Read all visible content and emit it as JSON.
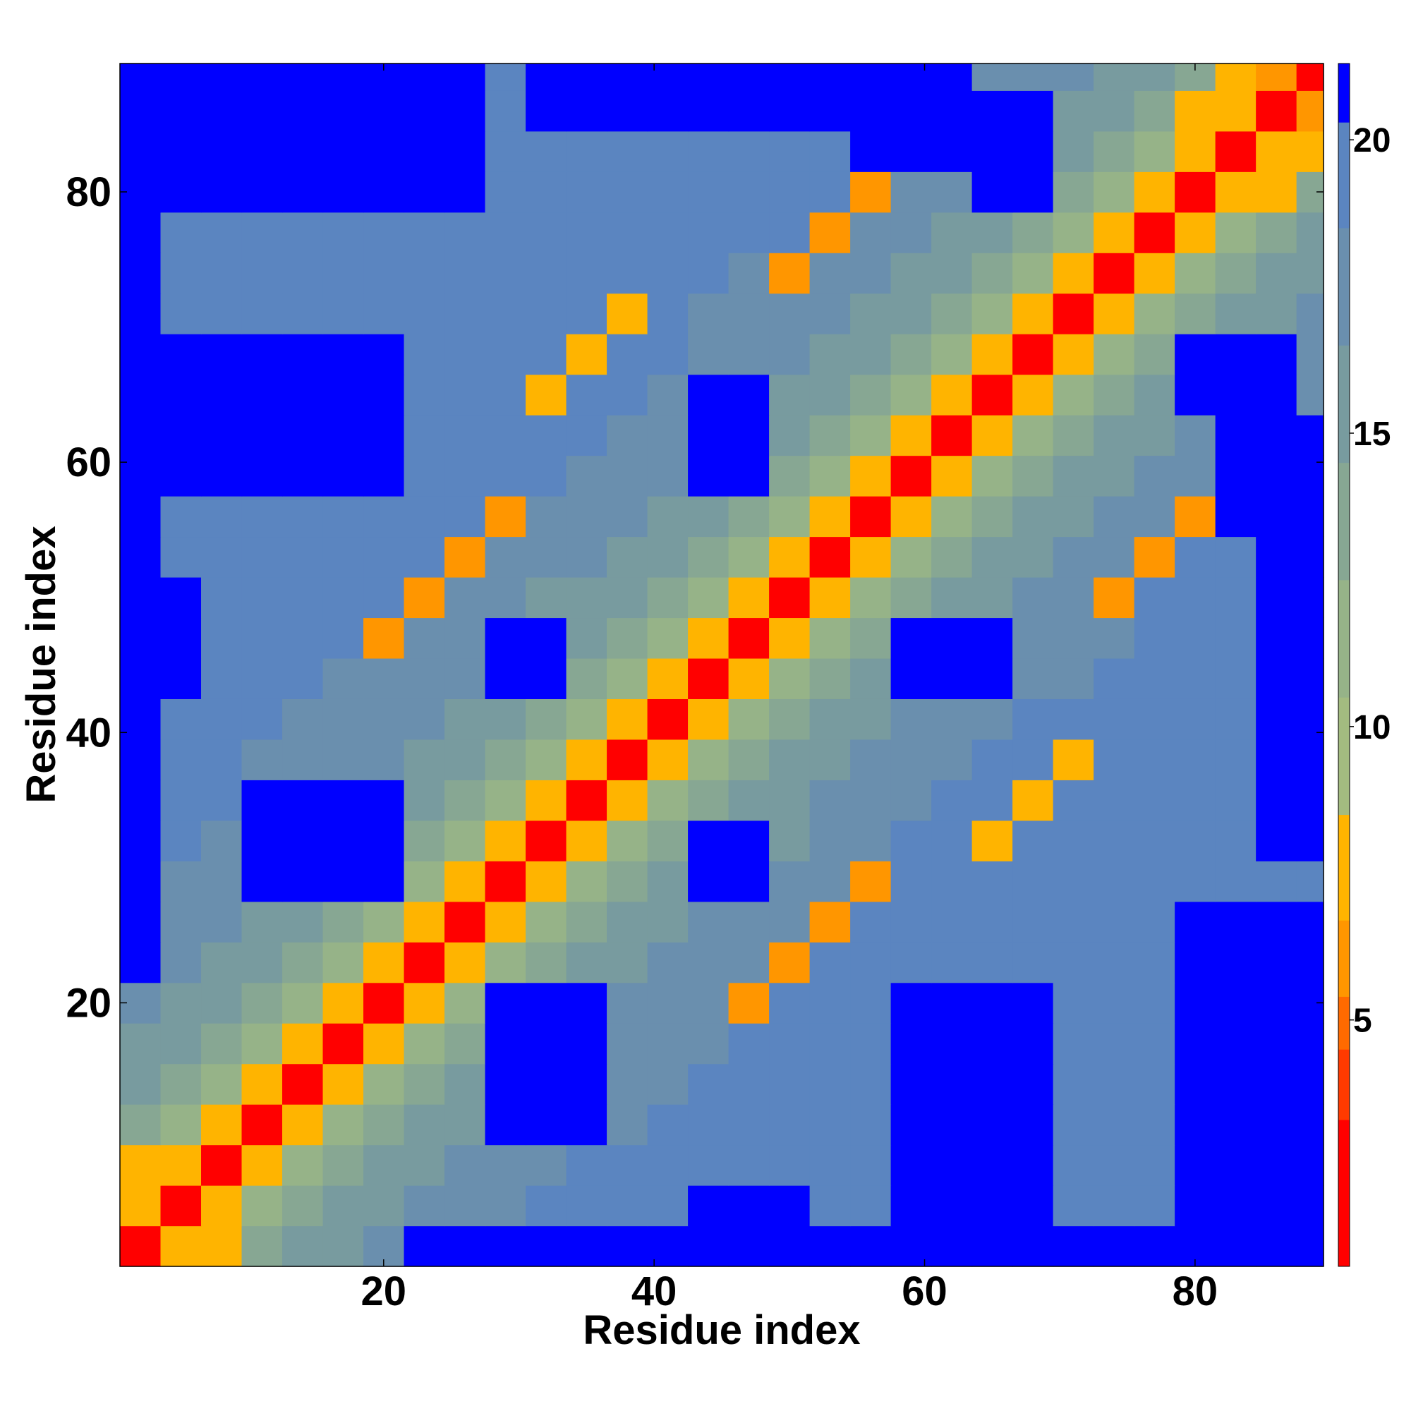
{
  "chart_data": {
    "type": "heatmap",
    "xlabel": "Residue index",
    "ylabel": "Residue index",
    "xlim": [
      0.5,
      89.5
    ],
    "ylim": [
      0.5,
      89.5
    ],
    "xticks": [
      20,
      40,
      60,
      80
    ],
    "yticks": [
      20,
      40,
      60,
      80
    ],
    "x_bins": [
      0.5,
      3.5,
      6.5,
      9.5,
      12.5,
      15.5,
      18.5,
      21.5,
      24.5,
      27.5,
      30.5,
      33.5,
      36.5,
      39.5,
      42.5,
      45.5,
      48.5,
      51.5,
      54.5,
      57.5,
      60.5,
      63.5,
      66.5,
      69.5,
      72.5,
      75.5,
      78.5,
      81.5,
      84.5,
      87.5,
      89.5
    ],
    "y_bins": [
      0.5,
      3.5,
      6.5,
      9.5,
      12.5,
      15.5,
      18.5,
      21.5,
      24.5,
      27.5,
      30.5,
      33.5,
      36.5,
      39.5,
      42.5,
      45.5,
      48.5,
      51.5,
      54.5,
      57.5,
      60.5,
      63.5,
      66.5,
      69.5,
      72.5,
      75.5,
      78.5,
      81.5,
      84.5,
      87.5,
      89.5
    ],
    "values": [
      [
        2,
        7,
        8,
        13,
        15,
        16,
        17,
        21,
        21,
        21,
        21,
        21,
        21,
        21,
        21,
        21,
        21,
        21,
        21,
        21,
        21,
        21,
        21,
        21,
        21,
        21,
        21,
        21,
        21,
        21
      ],
      [
        7,
        2,
        7,
        11,
        13,
        15,
        16,
        17,
        18,
        18,
        19,
        19,
        19,
        19,
        21,
        21,
        21,
        19,
        19,
        21,
        21,
        21,
        21,
        19,
        19,
        19,
        21,
        21,
        21,
        21
      ],
      [
        8,
        7,
        2,
        7,
        11,
        13,
        15,
        16,
        17,
        18,
        18,
        19,
        19,
        19,
        19,
        19,
        19,
        19,
        19,
        21,
        21,
        21,
        21,
        19,
        19,
        19,
        21,
        21,
        21,
        21
      ],
      [
        13,
        11,
        7,
        2,
        7,
        11,
        13,
        15,
        16,
        21,
        21,
        21,
        18,
        19,
        19,
        19,
        19,
        19,
        19,
        21,
        21,
        21,
        21,
        19,
        19,
        19,
        21,
        21,
        21,
        21
      ],
      [
        15,
        13,
        11,
        7,
        2,
        7,
        11,
        13,
        15,
        21,
        21,
        21,
        18,
        18,
        19,
        19,
        19,
        19,
        19,
        21,
        21,
        21,
        21,
        19,
        19,
        19,
        21,
        21,
        21,
        21
      ],
      [
        16,
        15,
        13,
        11,
        7,
        2,
        7,
        11,
        13,
        21,
        21,
        21,
        17,
        18,
        18,
        19,
        19,
        19,
        19,
        21,
        21,
        21,
        21,
        19,
        19,
        19,
        21,
        21,
        21,
        21
      ],
      [
        17,
        16,
        15,
        13,
        11,
        7,
        2,
        7,
        11,
        21,
        21,
        21,
        17,
        18,
        18,
        6,
        19,
        19,
        19,
        21,
        21,
        21,
        21,
        19,
        19,
        19,
        21,
        21,
        21,
        21
      ],
      [
        21,
        17,
        16,
        15,
        13,
        11,
        7,
        2,
        7,
        11,
        13,
        15,
        16,
        17,
        18,
        18,
        6,
        19,
        19,
        19,
        19,
        19,
        19,
        19,
        19,
        19,
        21,
        21,
        21,
        21
      ],
      [
        21,
        18,
        17,
        16,
        15,
        13,
        11,
        7,
        2,
        7,
        11,
        13,
        15,
        16,
        17,
        18,
        18,
        6,
        19,
        19,
        19,
        19,
        19,
        19,
        19,
        19,
        21,
        21,
        21,
        21
      ],
      [
        21,
        18,
        18,
        21,
        21,
        21,
        21,
        11,
        7,
        2,
        7,
        11,
        13,
        15,
        21,
        21,
        17,
        18,
        6,
        19,
        19,
        19,
        19,
        19,
        19,
        19,
        19,
        19,
        19,
        19
      ],
      [
        21,
        19,
        18,
        21,
        21,
        21,
        21,
        13,
        11,
        7,
        2,
        7,
        11,
        13,
        21,
        21,
        16,
        17,
        18,
        19,
        19,
        8,
        19,
        19,
        19,
        19,
        19,
        19,
        21,
        21
      ],
      [
        21,
        19,
        19,
        21,
        21,
        21,
        21,
        15,
        13,
        11,
        7,
        2,
        7,
        11,
        13,
        15,
        16,
        17,
        18,
        18,
        19,
        19,
        8,
        19,
        19,
        19,
        19,
        19,
        21,
        21
      ],
      [
        21,
        19,
        19,
        18,
        18,
        17,
        17,
        16,
        15,
        13,
        11,
        7,
        2,
        7,
        11,
        13,
        15,
        16,
        17,
        18,
        18,
        19,
        19,
        7,
        19,
        19,
        19,
        19,
        21,
        21
      ],
      [
        21,
        19,
        19,
        19,
        18,
        18,
        18,
        17,
        16,
        15,
        13,
        11,
        7,
        2,
        7,
        11,
        13,
        15,
        16,
        17,
        18,
        18,
        19,
        19,
        19,
        19,
        19,
        19,
        21,
        21
      ],
      [
        21,
        21,
        19,
        19,
        19,
        18,
        18,
        18,
        17,
        21,
        21,
        13,
        11,
        7,
        2,
        7,
        11,
        13,
        15,
        21,
        21,
        21,
        18,
        18,
        19,
        19,
        19,
        19,
        21,
        21
      ],
      [
        21,
        21,
        19,
        19,
        19,
        19,
        6,
        18,
        18,
        21,
        21,
        15,
        13,
        11,
        7,
        2,
        7,
        11,
        13,
        21,
        21,
        21,
        17,
        18,
        18,
        19,
        19,
        19,
        21,
        21
      ],
      [
        21,
        21,
        19,
        19,
        19,
        19,
        19,
        6,
        18,
        17,
        16,
        16,
        15,
        13,
        11,
        7,
        2,
        7,
        11,
        13,
        15,
        16,
        17,
        18,
        6,
        19,
        19,
        19,
        21,
        21
      ],
      [
        21,
        19,
        19,
        19,
        19,
        19,
        19,
        19,
        6,
        18,
        17,
        17,
        16,
        15,
        13,
        11,
        7,
        2,
        7,
        11,
        13,
        15,
        16,
        17,
        18,
        6,
        19,
        19,
        21,
        21
      ],
      [
        21,
        19,
        19,
        19,
        19,
        19,
        19,
        19,
        19,
        6,
        18,
        18,
        17,
        16,
        15,
        13,
        11,
        7,
        2,
        7,
        11,
        13,
        15,
        16,
        17,
        18,
        6,
        21,
        21,
        21
      ],
      [
        21,
        21,
        21,
        21,
        21,
        21,
        21,
        19,
        19,
        19,
        19,
        18,
        18,
        17,
        21,
        21,
        13,
        11,
        7,
        2,
        7,
        11,
        13,
        15,
        16,
        17,
        18,
        21,
        21,
        21
      ],
      [
        21,
        21,
        21,
        21,
        21,
        21,
        21,
        19,
        19,
        19,
        19,
        19,
        18,
        18,
        21,
        21,
        15,
        13,
        11,
        7,
        2,
        7,
        11,
        13,
        15,
        16,
        17,
        21,
        21,
        21
      ],
      [
        21,
        21,
        21,
        21,
        21,
        21,
        21,
        19,
        19,
        19,
        8,
        19,
        19,
        18,
        21,
        21,
        16,
        15,
        13,
        11,
        7,
        2,
        7,
        11,
        13,
        15,
        21,
        21,
        21,
        18
      ],
      [
        21,
        21,
        21,
        21,
        21,
        21,
        21,
        19,
        19,
        19,
        19,
        8,
        19,
        19,
        18,
        17,
        17,
        16,
        15,
        13,
        11,
        7,
        2,
        7,
        11,
        13,
        21,
        21,
        21,
        18
      ],
      [
        21,
        19,
        19,
        19,
        19,
        19,
        19,
        19,
        19,
        19,
        19,
        19,
        7,
        19,
        18,
        18,
        18,
        17,
        16,
        15,
        13,
        11,
        7,
        2,
        7,
        11,
        13,
        15,
        16,
        17
      ],
      [
        21,
        19,
        19,
        19,
        19,
        19,
        19,
        19,
        19,
        19,
        19,
        19,
        19,
        19,
        19,
        18,
        6,
        18,
        17,
        16,
        15,
        13,
        11,
        7,
        2,
        7,
        11,
        13,
        15,
        16
      ],
      [
        21,
        19,
        19,
        19,
        19,
        19,
        19,
        19,
        19,
        19,
        19,
        19,
        19,
        19,
        19,
        19,
        19,
        6,
        18,
        17,
        16,
        15,
        13,
        11,
        7,
        2,
        7,
        11,
        13,
        15
      ],
      [
        21,
        21,
        21,
        21,
        21,
        21,
        21,
        21,
        21,
        19,
        19,
        19,
        19,
        19,
        19,
        19,
        19,
        19,
        6,
        18,
        17,
        21,
        21,
        13,
        11,
        7,
        2,
        7,
        8,
        13
      ],
      [
        21,
        21,
        21,
        21,
        21,
        21,
        21,
        21,
        21,
        19,
        19,
        19,
        19,
        19,
        19,
        19,
        19,
        19,
        21,
        21,
        21,
        21,
        21,
        15,
        13,
        11,
        7,
        2,
        7,
        7
      ],
      [
        21,
        21,
        21,
        21,
        21,
        21,
        21,
        21,
        21,
        19,
        21,
        21,
        21,
        21,
        21,
        21,
        21,
        21,
        21,
        21,
        21,
        21,
        21,
        16,
        15,
        13,
        8,
        7,
        2,
        6
      ],
      [
        21,
        21,
        21,
        21,
        21,
        21,
        21,
        21,
        21,
        19,
        21,
        21,
        21,
        21,
        21,
        21,
        21,
        21,
        21,
        21,
        21,
        18,
        18,
        17,
        16,
        15,
        13,
        7,
        6,
        2
      ]
    ],
    "colorbar": {
      "lim": [
        0.8,
        21.3
      ],
      "ticks": [
        5,
        10,
        15,
        20
      ],
      "bounds": [
        0.8,
        3.3,
        4.5,
        5.4,
        6.7,
        8.5,
        10.5,
        12.5,
        14.5,
        16.5,
        18.5,
        20.3,
        21.3
      ],
      "colors": [
        "#ff0000",
        "#ff3a00",
        "#ff6a00",
        "#ff9600",
        "#ffb400",
        "#a3bb80",
        "#96b388",
        "#87a793",
        "#789b9f",
        "#6a8fae",
        "#5b85c0",
        "#0000ff"
      ]
    }
  }
}
